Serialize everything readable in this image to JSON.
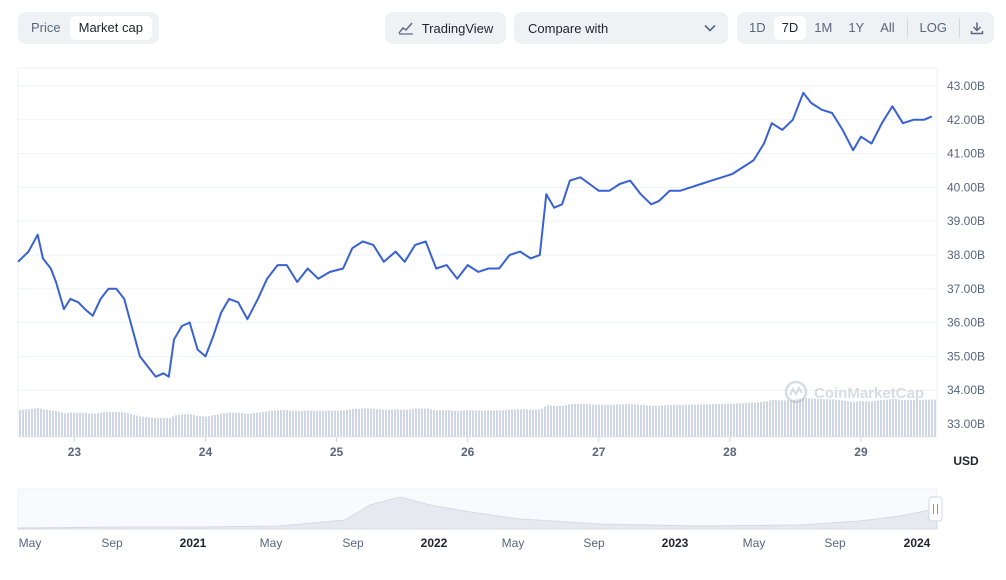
{
  "toolbar": {
    "type_tabs": [
      "Price",
      "Market cap"
    ],
    "active_type": "Market cap",
    "tradingview_label": "TradingView",
    "compare_label": "Compare with",
    "ranges": [
      "1D",
      "7D",
      "1M",
      "1Y",
      "All"
    ],
    "active_range": "7D",
    "log_label": "LOG",
    "download_icon": "download-icon"
  },
  "watermark": "CoinMarketCap",
  "colors": {
    "line": "#3861d4",
    "volume": "#cfd6e4",
    "navigator": "#e6e9ef",
    "axis_text": "#58667e"
  },
  "chart_data": {
    "type": "line",
    "title": "",
    "xlabel": "",
    "ylabel": "",
    "currency": "USD",
    "y_ticks": [
      "33.00B",
      "34.00B",
      "35.00B",
      "36.00B",
      "37.00B",
      "38.00B",
      "39.00B",
      "40.00B",
      "41.00B",
      "42.00B",
      "43.00B"
    ],
    "ylim": [
      32.6,
      43.5
    ],
    "x_ticks": [
      "23",
      "24",
      "25",
      "26",
      "27",
      "28",
      "29"
    ],
    "xlim": [
      22.57,
      29.58
    ],
    "grid": true,
    "series": [
      {
        "values_billion_usd": [
          [
            22.57,
            37.8
          ],
          [
            22.65,
            38.1
          ],
          [
            22.72,
            38.6
          ],
          [
            22.76,
            37.9
          ],
          [
            22.82,
            37.6
          ],
          [
            22.86,
            37.2
          ],
          [
            22.92,
            36.4
          ],
          [
            22.97,
            36.7
          ],
          [
            23.03,
            36.6
          ],
          [
            23.08,
            36.4
          ],
          [
            23.14,
            36.2
          ],
          [
            23.2,
            36.7
          ],
          [
            23.26,
            37.0
          ],
          [
            23.32,
            37.0
          ],
          [
            23.38,
            36.7
          ],
          [
            23.45,
            35.7
          ],
          [
            23.5,
            35.0
          ],
          [
            23.56,
            34.7
          ],
          [
            23.62,
            34.4
          ],
          [
            23.68,
            34.5
          ],
          [
            23.72,
            34.4
          ],
          [
            23.76,
            35.5
          ],
          [
            23.82,
            35.9
          ],
          [
            23.88,
            36.0
          ],
          [
            23.94,
            35.2
          ],
          [
            24.0,
            35.0
          ],
          [
            24.06,
            35.6
          ],
          [
            24.12,
            36.3
          ],
          [
            24.18,
            36.7
          ],
          [
            24.25,
            36.6
          ],
          [
            24.32,
            36.1
          ],
          [
            24.4,
            36.7
          ],
          [
            24.47,
            37.3
          ],
          [
            24.55,
            37.7
          ],
          [
            24.62,
            37.7
          ],
          [
            24.7,
            37.2
          ],
          [
            24.78,
            37.6
          ],
          [
            24.86,
            37.3
          ],
          [
            24.95,
            37.5
          ],
          [
            25.05,
            37.6
          ],
          [
            25.12,
            38.2
          ],
          [
            25.2,
            38.4
          ],
          [
            25.28,
            38.3
          ],
          [
            25.36,
            37.8
          ],
          [
            25.45,
            38.1
          ],
          [
            25.52,
            37.8
          ],
          [
            25.6,
            38.3
          ],
          [
            25.68,
            38.4
          ],
          [
            25.76,
            37.6
          ],
          [
            25.84,
            37.7
          ],
          [
            25.92,
            37.3
          ],
          [
            26.0,
            37.7
          ],
          [
            26.08,
            37.5
          ],
          [
            26.16,
            37.6
          ],
          [
            26.24,
            37.6
          ],
          [
            26.32,
            38.0
          ],
          [
            26.4,
            38.1
          ],
          [
            26.48,
            37.9
          ],
          [
            26.55,
            38.0
          ],
          [
            26.6,
            39.8
          ],
          [
            26.66,
            39.4
          ],
          [
            26.72,
            39.5
          ],
          [
            26.78,
            40.2
          ],
          [
            26.86,
            40.3
          ],
          [
            26.93,
            40.1
          ],
          [
            27.0,
            39.9
          ],
          [
            27.08,
            39.9
          ],
          [
            27.16,
            40.1
          ],
          [
            27.24,
            40.2
          ],
          [
            27.32,
            39.8
          ],
          [
            27.4,
            39.5
          ],
          [
            27.46,
            39.6
          ],
          [
            27.54,
            39.9
          ],
          [
            27.62,
            39.9
          ],
          [
            27.7,
            40.0
          ],
          [
            27.78,
            40.1
          ],
          [
            27.86,
            40.2
          ],
          [
            27.94,
            40.3
          ],
          [
            28.02,
            40.4
          ],
          [
            28.1,
            40.6
          ],
          [
            28.18,
            40.8
          ],
          [
            28.26,
            41.3
          ],
          [
            28.32,
            41.9
          ],
          [
            28.4,
            41.7
          ],
          [
            28.48,
            42.0
          ],
          [
            28.56,
            42.8
          ],
          [
            28.62,
            42.5
          ],
          [
            28.7,
            42.3
          ],
          [
            28.78,
            42.2
          ],
          [
            28.86,
            41.7
          ],
          [
            28.94,
            41.1
          ],
          [
            29.0,
            41.5
          ],
          [
            29.08,
            41.3
          ],
          [
            29.16,
            41.9
          ],
          [
            29.24,
            42.4
          ],
          [
            29.32,
            41.9
          ],
          [
            29.4,
            42.0
          ],
          [
            29.48,
            42.0
          ],
          [
            29.54,
            42.1
          ]
        ]
      }
    ],
    "navigator_ticks": [
      "May",
      "Sep",
      "2021",
      "May",
      "Sep",
      "2022",
      "May",
      "Sep",
      "2023",
      "May",
      "Sep",
      "2024"
    ],
    "navigator_bold_ticks": [
      "2021",
      "2022",
      "2023",
      "2024"
    ]
  }
}
